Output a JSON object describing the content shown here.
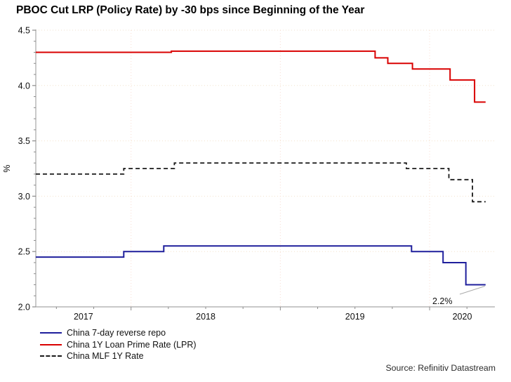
{
  "title": "PBOC Cut LRP (Policy Rate) by -30 bps since Beginning of the Year",
  "source": "Source: Refinitiv Datastream",
  "chart_data": {
    "type": "line",
    "subtype": "step",
    "title": "PBOC Cut LRP (Policy Rate) by -30 bps since Beginning of the Year",
    "xlabel": "",
    "ylabel": "%",
    "ylim": [
      2.0,
      4.5
    ],
    "xlim_years": [
      2017.362,
      2020.437
    ],
    "grid": true,
    "legend_position": "bottom-left",
    "y_ticks": [
      4.5,
      4.0,
      3.5,
      3.0,
      2.5,
      2.0
    ],
    "y_tick_labels": [
      "4.5",
      "4.0",
      "3.5",
      "3.0",
      "2.5",
      "2.0"
    ],
    "y_minor_tick_interval": 0.1,
    "x_tick_years": [
      2017,
      2018,
      2019,
      2020
    ],
    "x_tick_labels": [
      "2017",
      "2018",
      "2019",
      "2020"
    ],
    "x_minor_tick_interval_years": 0.25,
    "series": [
      {
        "name": "China 7-day reverse repo",
        "color": "#1f1f9c",
        "style": "solid",
        "steps": [
          [
            2017.362,
            2.45
          ],
          [
            2017.951,
            2.5
          ],
          [
            2018.219,
            2.55
          ],
          [
            2019.879,
            2.5
          ],
          [
            2020.09,
            2.4
          ],
          [
            2020.243,
            2.2
          ]
        ],
        "end_x": 2020.375
      },
      {
        "name": "China 1Y Loan Prime Rate (LPR)",
        "color": "#d90000",
        "style": "solid",
        "steps": [
          [
            2017.362,
            4.3
          ],
          [
            2018.27,
            4.31
          ],
          [
            2019.635,
            4.25
          ],
          [
            2019.72,
            4.2
          ],
          [
            2019.885,
            4.15
          ],
          [
            2020.137,
            4.05
          ],
          [
            2020.301,
            3.85
          ]
        ],
        "end_x": 2020.375
      },
      {
        "name": "China MLF 1Y Rate",
        "color": "#1a1a1a",
        "style": "dashed",
        "steps": [
          [
            2017.362,
            3.2
          ],
          [
            2017.951,
            3.25
          ],
          [
            2018.29,
            3.3
          ],
          [
            2019.844,
            3.25
          ],
          [
            2020.129,
            3.15
          ],
          [
            2020.287,
            2.95
          ]
        ],
        "end_x": 2020.375
      }
    ],
    "annotation": {
      "text": "2.2%",
      "value": 2.2,
      "series": "China 7-day reverse repo"
    },
    "colors": {
      "grid_horizontal": "#f2e2cc",
      "grid_vertical": "#f8ddd2",
      "axis": "#a6a6a6",
      "tick": "#8c8c8c",
      "tick_label": "#111111",
      "callout": "#aaaaaa"
    }
  }
}
